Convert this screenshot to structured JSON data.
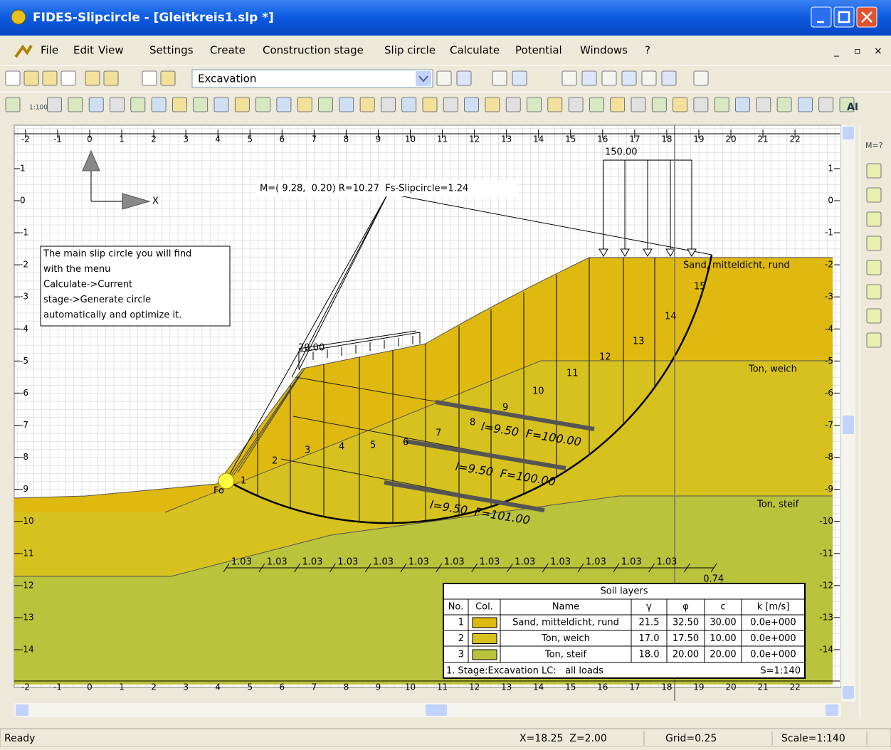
{
  "window": {
    "title": "FIDES-Slipcircle - [Gleitkreis1.slp *]"
  },
  "menu": [
    "File",
    "Edit",
    "View",
    "Settings",
    "Create",
    "Construction stage",
    "Slip circle",
    "Calculate",
    "Potential",
    "Windows",
    "?"
  ],
  "toolbar": {
    "stage": "Excavation",
    "scale_button": "1:100",
    "ai_button": "AI",
    "side_button": "M=?"
  },
  "rulers": {
    "x": [
      -2,
      -1,
      0,
      1,
      2,
      3,
      4,
      5,
      6,
      7,
      8,
      9,
      10,
      11,
      12,
      13,
      14,
      15,
      16,
      17,
      18,
      19,
      20,
      21,
      22
    ],
    "z": [
      1,
      0,
      -1,
      -2,
      -3,
      -4,
      -5,
      -6,
      -7,
      -8,
      -9,
      -10,
      -11,
      -12,
      -13,
      -14
    ]
  },
  "drawing": {
    "axis_label": "X",
    "circle_info": "M=( 9.28,  0.20) R=10.27  Fs-Slipcircle=1.24",
    "load_label": "150.00",
    "surcharge_label": "20.00",
    "note": [
      "The main slip circle you will find",
      "with the menu",
      "Calculate->Current",
      "stage->Generate circle",
      "automatically and optimize it."
    ],
    "layer_labels": [
      "Sand, mitteldicht, rund",
      "Ton, weich",
      "Ton, steif"
    ],
    "slices": [
      1,
      2,
      3,
      4,
      5,
      6,
      7,
      8,
      9,
      10,
      11,
      12,
      13,
      14,
      15
    ],
    "anchors": [
      "l=9.50  F=100.00",
      "l=9.50  F=100.00",
      "l=9.50  F=101.00"
    ],
    "spacing": [
      1.03,
      1.03,
      1.03,
      1.03,
      1.03,
      1.03,
      1.03,
      1.03,
      1.03,
      1.03,
      1.03,
      1.03,
      1.03,
      0.74
    ],
    "foot_label": "Fo"
  },
  "soil_table": {
    "title": "Soil layers",
    "columns": [
      "No.",
      "Col.",
      "Name",
      "γ",
      "φ",
      "c",
      "k [m/s]"
    ],
    "colors": [
      "#dfb90f",
      "#d6c11f",
      "#b9c33c"
    ],
    "rows": [
      [
        "1",
        "Sand, mitteldicht, rund",
        "21.5",
        "32.50",
        "30.00",
        "0.0e+000"
      ],
      [
        "2",
        "Ton, weich",
        "17.0",
        "17.50",
        "10.00",
        "0.0e+000"
      ],
      [
        "3",
        "Ton, steif",
        "18.0",
        "20.00",
        "20.00",
        "0.0e+000"
      ]
    ],
    "footer": "1. Stage:Excavation LC:   all loads",
    "scale": "S=1:140"
  },
  "status": {
    "message": "Ready",
    "position": "X=18.25  Z=2.00",
    "grid": "Grid=0.25",
    "scale": "Scale=1:140"
  }
}
